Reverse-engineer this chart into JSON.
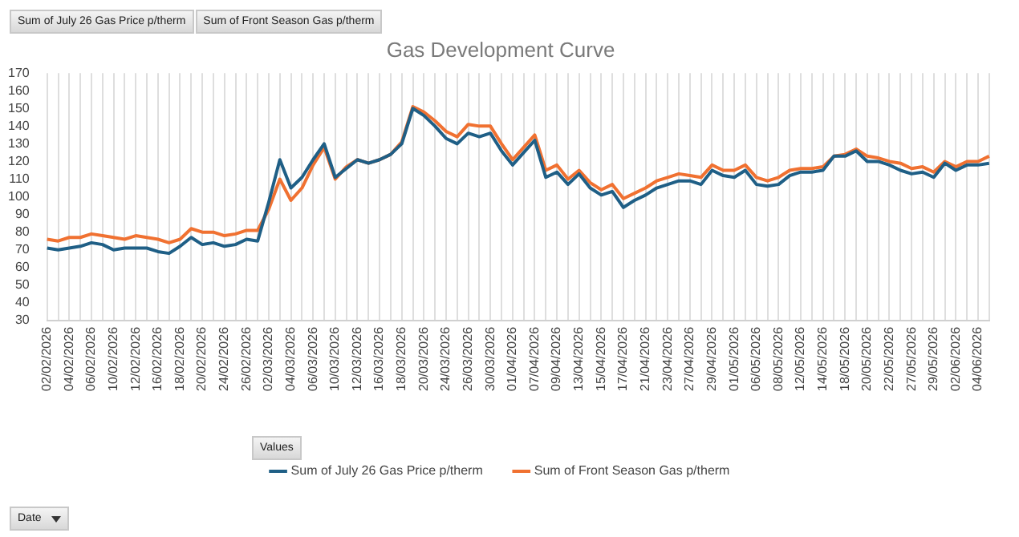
{
  "chart_data": {
    "type": "line",
    "title": "Gas Development Curve",
    "categories": [
      "02/02/2026",
      null,
      "04/02/2026",
      null,
      "06/02/2026",
      null,
      "10/02/2026",
      null,
      "12/02/2026",
      null,
      "16/02/2026",
      null,
      "18/02/2026",
      null,
      "20/02/2026",
      null,
      "24/02/2026",
      null,
      "26/02/2026",
      null,
      "02/03/2026",
      null,
      "04/03/2026",
      null,
      "06/03/2026",
      null,
      "10/03/2026",
      null,
      "12/03/2026",
      null,
      "16/03/2026",
      null,
      "18/03/2026",
      null,
      "20/03/2026",
      null,
      "24/03/2026",
      null,
      "26/03/2026",
      null,
      "30/03/2026",
      null,
      "01/04/2026",
      null,
      "07/04/2026",
      null,
      "09/04/2026",
      null,
      "13/04/2026",
      null,
      "15/04/2026",
      null,
      "17/04/2026",
      null,
      "21/04/2026",
      null,
      "23/04/2026",
      null,
      "27/04/2026",
      null,
      "29/04/2026",
      null,
      "01/05/2026",
      null,
      "06/05/2026",
      null,
      "08/05/2026",
      null,
      "12/05/2026",
      null,
      "14/05/2026",
      null,
      "18/05/2026",
      null,
      "20/05/2026",
      null,
      "22/05/2026",
      null,
      "27/05/2026",
      null,
      "29/05/2026",
      null,
      "02/06/2026",
      null,
      "04/06/2026",
      null
    ],
    "series": [
      {
        "name": "Sum of July 26 Gas Price p/therm",
        "color": "#1f5f86",
        "values": [
          71,
          70,
          71,
          72,
          74,
          73,
          70,
          71,
          71,
          71,
          69,
          68,
          72,
          77,
          73,
          74,
          72,
          73,
          76,
          75,
          97,
          121,
          105,
          111,
          121,
          130,
          111,
          116,
          121,
          119,
          121,
          124,
          130,
          150,
          146,
          140,
          133,
          130,
          136,
          134,
          136,
          126,
          118,
          125,
          132,
          111,
          114,
          107,
          113,
          105,
          101,
          103,
          94,
          98,
          101,
          105,
          107,
          109,
          109,
          107,
          115,
          112,
          111,
          115,
          107,
          106,
          107,
          112,
          114,
          114,
          115,
          123,
          123,
          126,
          120,
          120,
          118,
          115,
          113,
          114,
          111,
          119,
          115,
          118,
          118,
          119
        ]
      },
      {
        "name": "Sum of Front Season Gas p/therm",
        "color": "#f07131",
        "values": [
          76,
          75,
          77,
          77,
          79,
          78,
          77,
          76,
          78,
          77,
          76,
          74,
          76,
          82,
          80,
          80,
          78,
          79,
          81,
          81,
          93,
          110,
          98,
          105,
          118,
          128,
          110,
          117,
          121,
          119,
          121,
          124,
          131,
          151,
          148,
          143,
          137,
          134,
          141,
          140,
          140,
          130,
          121,
          128,
          135,
          115,
          118,
          110,
          115,
          108,
          104,
          107,
          99,
          102,
          105,
          109,
          111,
          113,
          112,
          111,
          118,
          115,
          115,
          118,
          111,
          109,
          111,
          115,
          116,
          116,
          117,
          123,
          124,
          127,
          123,
          122,
          120,
          119,
          116,
          117,
          114,
          120,
          117,
          120,
          120,
          123
        ]
      }
    ],
    "ylim": [
      30,
      170
    ],
    "yticks": [
      30,
      40,
      50,
      60,
      70,
      80,
      90,
      100,
      110,
      120,
      130,
      140,
      150,
      160,
      170
    ],
    "grid": "x",
    "legend": "bottom",
    "marker": "none",
    "line_style": "solid",
    "annotations": [
      "Sum of July 26 Gas Price p/therm",
      "Sum of Front Season Gas p/therm",
      "Values",
      "Date"
    ]
  }
}
